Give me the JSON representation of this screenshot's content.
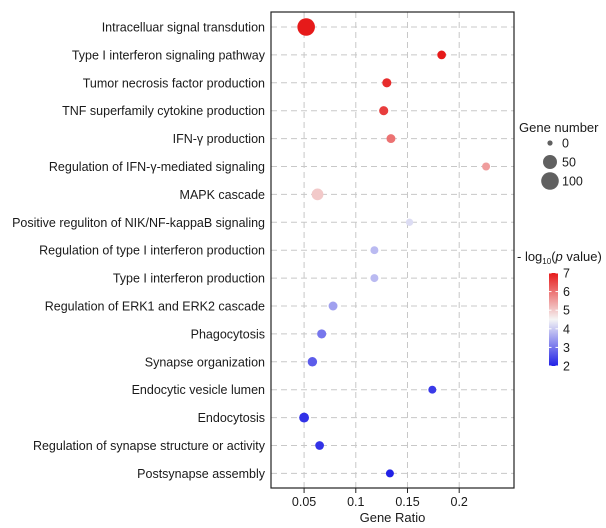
{
  "chart_data": {
    "type": "scatter",
    "title": "",
    "xlabel": "Gene Ratio",
    "ylabel": "",
    "xlim": [
      0.018,
      0.253
    ],
    "x_ticks": [
      {
        "value": 0.05,
        "label": "0.05"
      },
      {
        "value": 0.1,
        "label": "0.1"
      },
      {
        "value": 0.15,
        "label": "0.15"
      },
      {
        "value": 0.2,
        "label": "0.2"
      }
    ],
    "grid": true,
    "categories": [
      "Intracelluar signal transdution",
      "Type I interferon signaling pathway",
      "Tumor necrosis factor production",
      "TNF superfamily cytokine production",
      "IFN-γ production",
      "Regulation of IFN-γ-mediated signaling",
      "MAPK cascade",
      "Positive reguliton of NIK/NF-kappaB signaling",
      "Regulation of type I interferon production",
      "Type I interferon production",
      "Regulation of ERK1 and ERK2 cascade",
      "Phagocytosis",
      "Synapse organization",
      "Endocytic vesicle lumen",
      "Endocytosis",
      "Regulation of synapse structure or activity",
      "Postsynapse assembly"
    ],
    "points": [
      {
        "term": "Intracelluar signal transdution",
        "gene_ratio": 0.052,
        "gene_number": 100,
        "neg_log10_p": 7.0
      },
      {
        "term": "Type I interferon signaling pathway",
        "gene_ratio": 0.183,
        "gene_number": 8,
        "neg_log10_p": 7.0
      },
      {
        "term": "Tumor necrosis factor production",
        "gene_ratio": 0.13,
        "gene_number": 10,
        "neg_log10_p": 6.8
      },
      {
        "term": "TNF superfamily cytokine production",
        "gene_ratio": 0.127,
        "gene_number": 10,
        "neg_log10_p": 6.6
      },
      {
        "term": "IFN-γ production",
        "gene_ratio": 0.134,
        "gene_number": 9,
        "neg_log10_p": 6.0
      },
      {
        "term": "Regulation of IFN-γ-mediated signaling",
        "gene_ratio": 0.226,
        "gene_number": 5,
        "neg_log10_p": 5.5
      },
      {
        "term": "MAPK cascade",
        "gene_ratio": 0.063,
        "gene_number": 28,
        "neg_log10_p": 5.0
      },
      {
        "term": "Positive reguliton of NIK/NF-kappaB signaling",
        "gene_ratio": 0.152,
        "gene_number": 3,
        "neg_log10_p": 4.2
      },
      {
        "term": "Regulation of type I interferon production",
        "gene_ratio": 0.118,
        "gene_number": 5,
        "neg_log10_p": 3.8
      },
      {
        "term": "Type I interferon production",
        "gene_ratio": 0.118,
        "gene_number": 5,
        "neg_log10_p": 3.8
      },
      {
        "term": "Regulation of ERK1 and ERK2 cascade",
        "gene_ratio": 0.078,
        "gene_number": 9,
        "neg_log10_p": 3.5
      },
      {
        "term": "Phagocytosis",
        "gene_ratio": 0.067,
        "gene_number": 10,
        "neg_log10_p": 3.0
      },
      {
        "term": "Synapse organization",
        "gene_ratio": 0.058,
        "gene_number": 12,
        "neg_log10_p": 2.7
      },
      {
        "term": "Endocytic vesicle lumen",
        "gene_ratio": 0.174,
        "gene_number": 5,
        "neg_log10_p": 2.3
      },
      {
        "term": "Endocytosis",
        "gene_ratio": 0.05,
        "gene_number": 14,
        "neg_log10_p": 2.2
      },
      {
        "term": "Regulation of synapse structure or activity",
        "gene_ratio": 0.065,
        "gene_number": 8,
        "neg_log10_p": 2.2
      },
      {
        "term": "Postsynapse assembly",
        "gene_ratio": 0.133,
        "gene_number": 5,
        "neg_log10_p": 2.0
      }
    ],
    "size_legend": {
      "title": "Gene number",
      "entries": [
        {
          "value": 0,
          "label": "0"
        },
        {
          "value": 50,
          "label": "50"
        },
        {
          "value": 100,
          "label": "100"
        }
      ]
    },
    "color_legend": {
      "title_prefix": "- log",
      "title_subscript": "10",
      "title_open": "(",
      "title_italic": "p",
      "title_rest": " value)",
      "min": 2,
      "max": 7,
      "low_color": "#2121e6",
      "mid_color": "#f5f5f5",
      "high_color": "#e61a1a",
      "ticks": [
        {
          "value": 7,
          "label": "7"
        },
        {
          "value": 6,
          "label": "6"
        },
        {
          "value": 5,
          "label": "5"
        },
        {
          "value": 4,
          "label": "4"
        },
        {
          "value": 3,
          "label": "3"
        },
        {
          "value": 2,
          "label": "2"
        }
      ]
    }
  }
}
